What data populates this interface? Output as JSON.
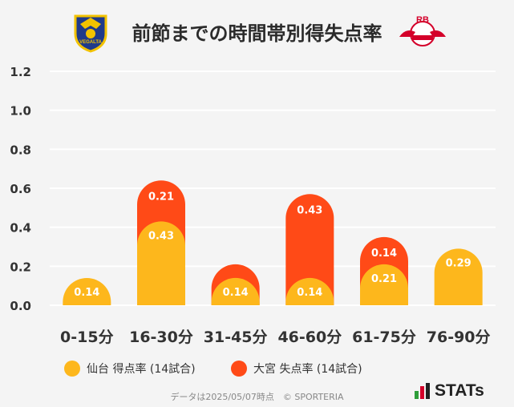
{
  "header": {
    "title": "前節までの時間帯別得失点率",
    "home_logo_text": "VEGALTA",
    "away_logo_text": "RB"
  },
  "colors": {
    "home": "#FDB71C",
    "away": "#FF4A17",
    "grid": "#ffffff",
    "text": "#333333"
  },
  "chart_data": {
    "type": "bar",
    "stacked": true,
    "title": "前節までの時間帯別得失点率",
    "categories": [
      "0-15分",
      "16-30分",
      "31-45分",
      "46-60分",
      "61-75分",
      "76-90分"
    ],
    "series": [
      {
        "name": "仙台 得点率 (14試合)",
        "values": [
          0.14,
          0.43,
          0.14,
          0.14,
          0.21,
          0.29
        ]
      },
      {
        "name": "大宮 失点率 (14試合)",
        "values": [
          0,
          0.21,
          0.07,
          0.43,
          0.14,
          0
        ]
      }
    ],
    "data_labels": [
      [
        "0.14",
        "0.43",
        "0.14",
        "0.14",
        "0.21",
        "0.29"
      ],
      [
        "",
        "0.21",
        "",
        "0.43",
        "0.14",
        ""
      ]
    ],
    "yticks": [
      "0.0",
      "0.2",
      "0.4",
      "0.6",
      "0.8",
      "1.0",
      "1.2"
    ],
    "ylim": [
      0,
      1.2
    ],
    "grid": true,
    "legend_position": "bottom"
  },
  "footer": {
    "note": "データは2025/05/07時点　© SPORTERIA",
    "brand": "STATs"
  }
}
